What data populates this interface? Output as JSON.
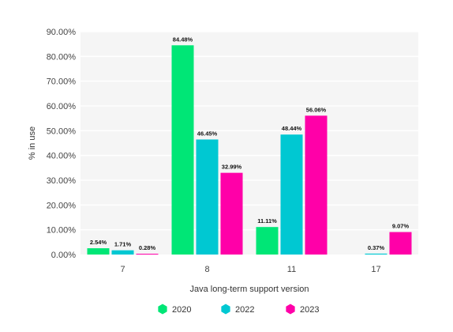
{
  "chart_data": {
    "type": "bar",
    "categories": [
      "7",
      "8",
      "11",
      "17"
    ],
    "series": [
      {
        "name": "2020",
        "color": "#00e676",
        "values": [
          2.54,
          84.48,
          11.11,
          null
        ],
        "labels": [
          "2.54%",
          "84.48%",
          "11.11%",
          ""
        ]
      },
      {
        "name": "2022",
        "color": "#00c8d2",
        "values": [
          1.71,
          46.45,
          48.44,
          0.37
        ],
        "labels": [
          "1.71%",
          "46.45%",
          "48.44%",
          "0.37%"
        ]
      },
      {
        "name": "2023",
        "color": "#ff00a8",
        "values": [
          0.28,
          32.99,
          56.06,
          9.07
        ],
        "labels": [
          "0.28%",
          "32.99%",
          "56.06%",
          "9.07%"
        ]
      }
    ],
    "ylim": [
      0,
      90
    ],
    "yticks": [
      0,
      10,
      20,
      30,
      40,
      50,
      60,
      70,
      80,
      90
    ],
    "ytick_labels": [
      "0.00%",
      "10.00%",
      "20.00%",
      "30.00%",
      "40.00%",
      "50.00%",
      "60.00%",
      "70.00%",
      "80.00%",
      "90.00%"
    ],
    "xlabel": "Java long-term support version",
    "ylabel": "% in use",
    "grid": true,
    "legend_position": "bottom",
    "plot_background": "#f5f5f5"
  }
}
